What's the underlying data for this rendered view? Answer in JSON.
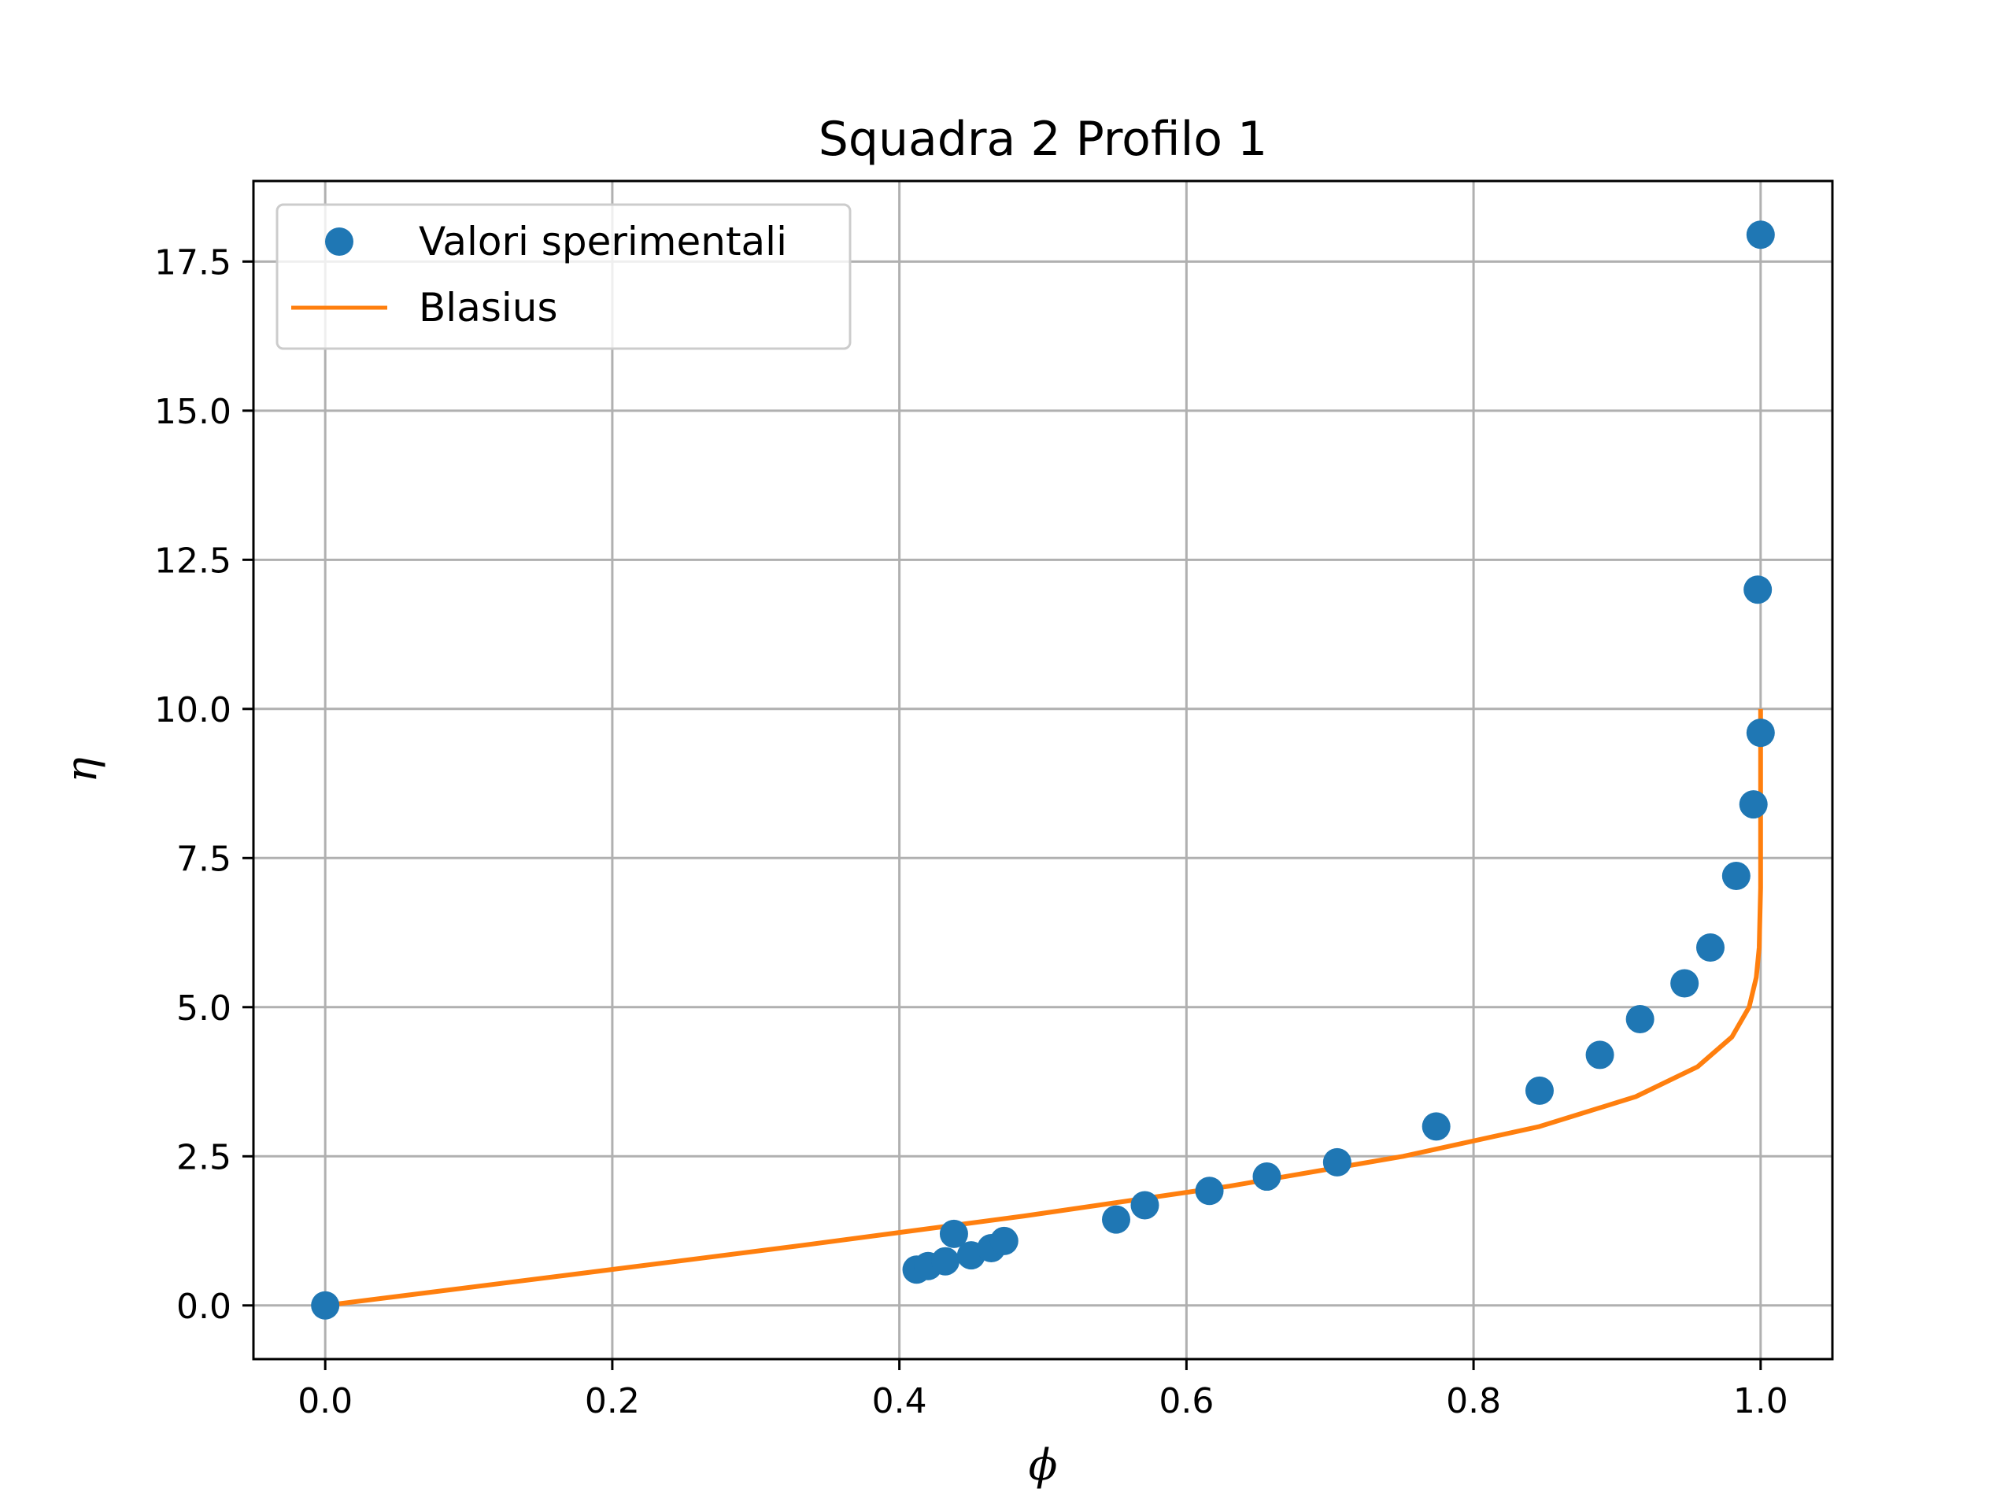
{
  "chart_data": {
    "type": "scatter",
    "title": "Squadra 2 Profilo 1",
    "xlabel": "ϕ",
    "ylabel": "η",
    "xlim": [
      -0.05,
      1.05
    ],
    "ylim": [
      -0.9,
      18.85
    ],
    "xticks": [
      0.0,
      0.2,
      0.4,
      0.6,
      0.8,
      1.0
    ],
    "xtick_labels": [
      "0.0",
      "0.2",
      "0.4",
      "0.6",
      "0.8",
      "1.0"
    ],
    "yticks": [
      0.0,
      2.5,
      5.0,
      7.5,
      10.0,
      12.5,
      15.0,
      17.5
    ],
    "ytick_labels": [
      "0.0",
      "2.5",
      "5.0",
      "7.5",
      "10.0",
      "12.5",
      "15.0",
      "17.5"
    ],
    "grid": true,
    "legend_position": "top-left",
    "series": [
      {
        "name": "Valori sperimentali",
        "kind": "markers",
        "color": "#1f77b4",
        "points": [
          [
            0.0,
            0.0
          ],
          [
            0.412,
            0.6
          ],
          [
            0.42,
            0.66
          ],
          [
            0.432,
            0.74
          ],
          [
            0.438,
            1.2
          ],
          [
            0.45,
            0.84
          ],
          [
            0.464,
            0.96
          ],
          [
            0.473,
            1.08
          ],
          [
            0.551,
            1.44
          ],
          [
            0.571,
            1.68
          ],
          [
            0.616,
            1.92
          ],
          [
            0.656,
            2.16
          ],
          [
            0.705,
            2.4
          ],
          [
            0.774,
            3.0
          ],
          [
            0.846,
            3.6
          ],
          [
            0.888,
            4.2
          ],
          [
            0.916,
            4.8
          ],
          [
            0.947,
            5.4
          ],
          [
            0.965,
            6.0
          ],
          [
            0.983,
            7.2
          ],
          [
            0.995,
            8.4
          ],
          [
            1.0,
            9.6
          ],
          [
            0.998,
            12.0
          ],
          [
            1.0,
            17.95
          ]
        ]
      },
      {
        "name": "Blasius",
        "kind": "line",
        "color": "#ff7f0e",
        "points": [
          [
            0.0,
            0.0
          ],
          [
            0.166,
            0.5
          ],
          [
            0.33,
            1.0
          ],
          [
            0.487,
            1.5
          ],
          [
            0.63,
            2.0
          ],
          [
            0.751,
            2.5
          ],
          [
            0.846,
            3.0
          ],
          [
            0.913,
            3.5
          ],
          [
            0.956,
            4.0
          ],
          [
            0.98,
            4.5
          ],
          [
            0.992,
            5.0
          ],
          [
            0.997,
            5.5
          ],
          [
            0.999,
            6.0
          ],
          [
            1.0,
            7.0
          ],
          [
            1.0,
            8.0
          ],
          [
            1.0,
            10.0
          ]
        ]
      }
    ]
  }
}
